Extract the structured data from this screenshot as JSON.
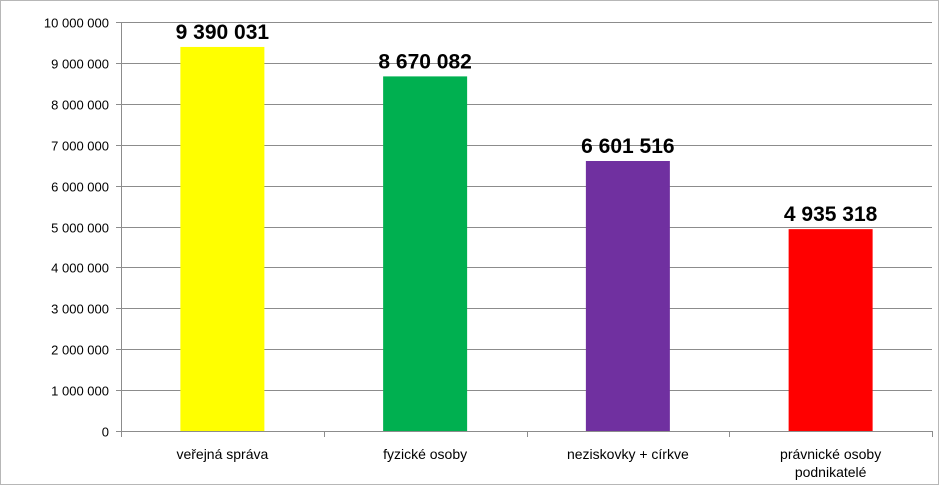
{
  "chart_data": {
    "type": "bar",
    "categories": [
      [
        "veřejná správa"
      ],
      [
        "fyzické osoby"
      ],
      [
        "neziskovky + církve"
      ],
      [
        "právnické osoby",
        "podnikatelé"
      ]
    ],
    "values": [
      9390031,
      8670082,
      6601516,
      4935318
    ],
    "value_labels": [
      "9 390 031",
      "8 670 082",
      "6 601 516",
      "4 935 318"
    ],
    "colors": [
      "#FFFF00",
      "#00B050",
      "#7030A0",
      "#FF0000"
    ],
    "ylim": [
      0,
      10000000
    ],
    "y_ticks": [
      0,
      1000000,
      2000000,
      3000000,
      4000000,
      5000000,
      6000000,
      7000000,
      8000000,
      9000000,
      10000000
    ],
    "y_tick_labels": [
      "0",
      "1 000 000",
      "2 000 000",
      "3 000 000",
      "4 000 000",
      "5 000 000",
      "6 000 000",
      "7 000 000",
      "8 000 000",
      "9 000 000",
      "10 000 000"
    ],
    "grid": true,
    "legend": false,
    "title": "",
    "xlabel": "",
    "ylabel": ""
  }
}
